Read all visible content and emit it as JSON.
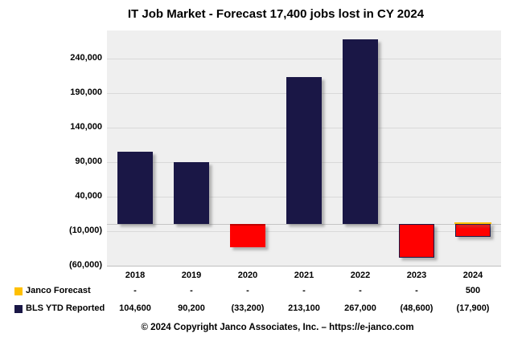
{
  "header": {
    "title": "IT Job Market - Forecast 17,400 jobs lost in CY 2024"
  },
  "footer": {
    "text": "© 2024 Copyright Janco Associates, Inc. – https://e-janco.com"
  },
  "colors": {
    "janco_gold": "#FFC000",
    "bls_navy": "#1A1746",
    "bls_red": "#FF0000",
    "red_border_dark": "#C00000",
    "plot_bg": "#EFEFEF",
    "gridline": "#D9D9D9",
    "axis_line": "#BFBFBF"
  },
  "chart_data": {
    "type": "bar",
    "title": "IT Job Market - Forecast 17,400 jobs lost in CY 2024",
    "categories": [
      "2018",
      "2019",
      "2020",
      "2021",
      "2022",
      "2023",
      "2024"
    ],
    "series": [
      {
        "name": "Janco Forecast",
        "values": [
          null,
          null,
          null,
          null,
          null,
          null,
          500
        ],
        "display": [
          "-",
          "-",
          "-",
          "-",
          "-",
          "-",
          "500"
        ],
        "color": "#FFC000"
      },
      {
        "name": "BLS YTD Reported",
        "values": [
          104600,
          90200,
          -33200,
          213100,
          267000,
          -48600,
          -17900
        ],
        "display": [
          "104,600",
          "90,200",
          "(33,200)",
          "213,100",
          "267,000",
          "(48,600)",
          "(17,900)"
        ],
        "color_positive": "#1A1746",
        "color_negative": "#FF0000",
        "borders": [
          "none",
          "none",
          "darkred-top",
          "none",
          "none",
          "navy",
          "navy"
        ]
      }
    ],
    "ylim": [
      -60000,
      280000
    ],
    "yticks": [
      {
        "value": 240000,
        "label": "240,000"
      },
      {
        "value": 190000,
        "label": "190,000"
      },
      {
        "value": 140000,
        "label": "140,000"
      },
      {
        "value": 90000,
        "label": "90,000"
      },
      {
        "value": 40000,
        "label": "40,000"
      },
      {
        "value": -10000,
        "label": "(10,000)"
      },
      {
        "value": -60000,
        "label": "(60,000)"
      }
    ],
    "grid": true,
    "legend_position": "bottom-left-table"
  }
}
